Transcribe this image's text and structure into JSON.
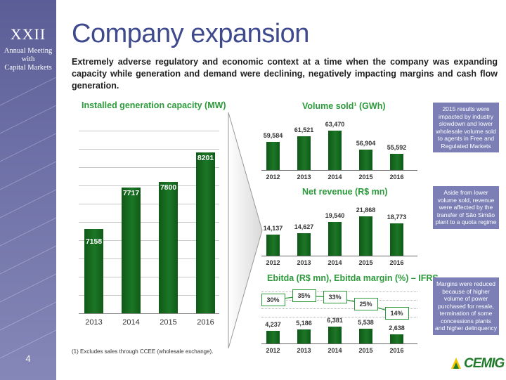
{
  "band": {
    "numeral": "XXII",
    "caption_lines": [
      "Annual Meeting",
      "with",
      "Capital Markets"
    ],
    "page_number": "4",
    "color": "#6d70a6"
  },
  "title": "Company expansion",
  "subtitle": "Extremely adverse regulatory and economic context at a time when the company was expanding capacity while generation and demand were declining, negatively impacting margins and cash flow generation.",
  "installed_capacity": {
    "title": "Installed generation capacity (MW)",
    "categories": [
      "2013",
      "2014",
      "2015",
      "2016"
    ],
    "values": [
      7158,
      7717,
      7800,
      8201
    ]
  },
  "volume_sold": {
    "title": "Volume sold¹ (GWh)",
    "categories": [
      "2012",
      "2013",
      "2014",
      "2015",
      "2016"
    ],
    "values": [
      59584,
      61521,
      63470,
      56904,
      55592
    ],
    "labels": [
      "59,584",
      "61,521",
      "63,470",
      "56,904",
      "55,592"
    ]
  },
  "net_revenue": {
    "title": "Net revenue (R$ mn)",
    "categories": [
      "2012",
      "2013",
      "2014",
      "2015",
      "2016"
    ],
    "values": [
      14137,
      14627,
      19540,
      21868,
      18773
    ],
    "labels": [
      "14,137",
      "14,627",
      "19,540",
      "21,868",
      "18,773"
    ]
  },
  "ebitda": {
    "title": "Ebitda (R$ mn), Ebitda margin (%) – IFRS",
    "categories": [
      "2012",
      "2013",
      "2014",
      "2015",
      "2016"
    ],
    "values": [
      4237,
      5186,
      6381,
      5538,
      2638
    ],
    "labels": [
      "4,237",
      "5,186",
      "6,381",
      "5,538",
      "2,638"
    ],
    "margin_values": [
      30,
      35,
      33,
      25,
      14
    ],
    "margin_labels": [
      "30%",
      "35%",
      "33%",
      "25%",
      "14%"
    ]
  },
  "notes": [
    "2015 results were impacted by industry slowdown and lower wholesale volume sold to agents in Free and Regulated Markets",
    "Aside from lower volume sold, revenue were affected by the transfer of São Simão plant to a quota regime",
    "Margins were reduced because of higher volume of power purchased for resale, termination of some concessions plants and higher delinquency"
  ],
  "footnote": "(1) Excludes sales through CCEE (wholesale exchange).",
  "logo_text": "CEMIG",
  "colors": {
    "accent_green": "#1c7626",
    "title_blue": "#3f4a8c",
    "section_green": "#2c9a3a",
    "note_bg": "#7b7fb6"
  },
  "chart_data": [
    {
      "type": "bar",
      "title": "Installed generation capacity (MW)",
      "categories": [
        "2013",
        "2014",
        "2015",
        "2016"
      ],
      "values": [
        7158,
        7717,
        7800,
        8201
      ]
    },
    {
      "type": "bar",
      "title": "Volume sold¹ (GWh)",
      "categories": [
        "2012",
        "2013",
        "2014",
        "2015",
        "2016"
      ],
      "values": [
        59584,
        61521,
        63470,
        56904,
        55592
      ]
    },
    {
      "type": "bar",
      "title": "Net revenue (R$ mn)",
      "categories": [
        "2012",
        "2013",
        "2014",
        "2015",
        "2016"
      ],
      "values": [
        14137,
        14627,
        19540,
        21868,
        18773
      ]
    },
    {
      "type": "bar",
      "title": "Ebitda (R$ mn), Ebitda margin (%) – IFRS",
      "categories": [
        "2012",
        "2013",
        "2014",
        "2015",
        "2016"
      ],
      "series": [
        {
          "values": [
            4237,
            5186,
            6381,
            5538,
            2638
          ]
        },
        {
          "values": [
            30,
            35,
            33,
            25,
            14
          ]
        }
      ]
    }
  ]
}
